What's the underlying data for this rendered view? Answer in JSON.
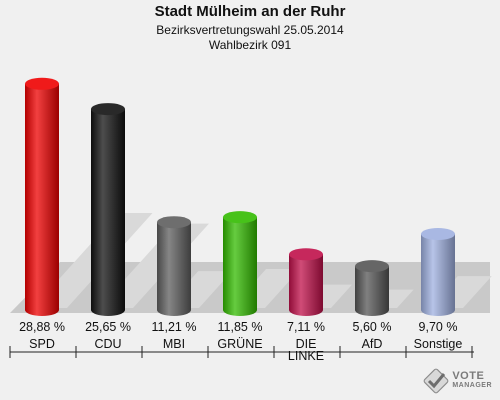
{
  "header": {
    "title": "Stadt Mülheim an der Ruhr",
    "subtitle": "Bezirksvertretungswahl 25.05.2014",
    "district": "Wahlbezirk 091"
  },
  "logo": {
    "line1": "VOTE",
    "line2": "MANAGER"
  },
  "chart_data": {
    "type": "bar",
    "title": "Stadt Mülheim an der Ruhr",
    "subtitle": "Bezirksvertretungswahl 25.05.2014 / Wahlbezirk 091",
    "categories": [
      "SPD",
      "CDU",
      "MBI",
      "GRÜNE",
      "DIE LINKE",
      "AfD",
      "Sonstige"
    ],
    "category_lines": [
      [
        "SPD"
      ],
      [
        "CDU"
      ],
      [
        "MBI"
      ],
      [
        "GRÜNE"
      ],
      [
        "DIE",
        "LINKE"
      ],
      [
        "AfD"
      ],
      [
        "Sonstige"
      ]
    ],
    "values": [
      28.88,
      25.65,
      11.21,
      11.85,
      7.11,
      5.6,
      9.7
    ],
    "value_labels": [
      "28,88 %",
      "25,65 %",
      "11,21 %",
      "11,85 %",
      "7,11 %",
      "5,60 %",
      "9,70 %"
    ],
    "colors": [
      "#ee0000",
      "#111111",
      "#5e5e5e",
      "#33bb00",
      "#c0104a",
      "#555555",
      "#9fb0e0"
    ],
    "xlabel": "",
    "ylabel": "",
    "ylim": [
      0,
      30
    ],
    "grid": false,
    "legend": "none"
  }
}
